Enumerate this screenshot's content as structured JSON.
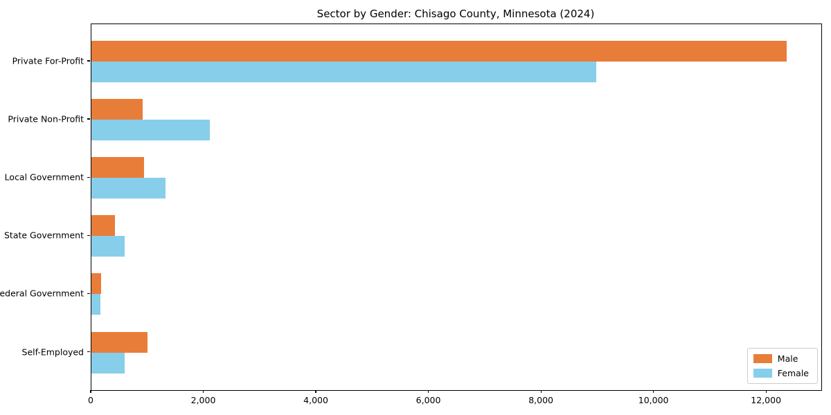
{
  "chart_data": {
    "type": "bar",
    "orientation": "horizontal",
    "title": "Sector by Gender: Chisago County, Minnesota (2024)",
    "xlabel": "",
    "ylabel": "",
    "categories": [
      "Private For-Profit",
      "Private Non-Profit",
      "Local Government",
      "State Government",
      "Federal Government",
      "Self-Employed"
    ],
    "series": [
      {
        "name": "Male",
        "color": "#e87d3a",
        "values": [
          12350,
          915,
          940,
          420,
          175,
          1000
        ]
      },
      {
        "name": "Female",
        "color": "#87ceeb",
        "values": [
          8970,
          2100,
          1310,
          585,
          155,
          585
        ]
      }
    ],
    "xlim": [
      0,
      12970
    ],
    "x_ticks": [
      {
        "value": 0,
        "label": "0"
      },
      {
        "value": 2000,
        "label": "2,000"
      },
      {
        "value": 4000,
        "label": "4,000"
      },
      {
        "value": 6000,
        "label": "6,000"
      },
      {
        "value": 8000,
        "label": "8,000"
      },
      {
        "value": 10000,
        "label": "10,000"
      },
      {
        "value": 12000,
        "label": "12,000"
      }
    ],
    "grid": false,
    "legend_position": "lower right",
    "frame": true
  }
}
